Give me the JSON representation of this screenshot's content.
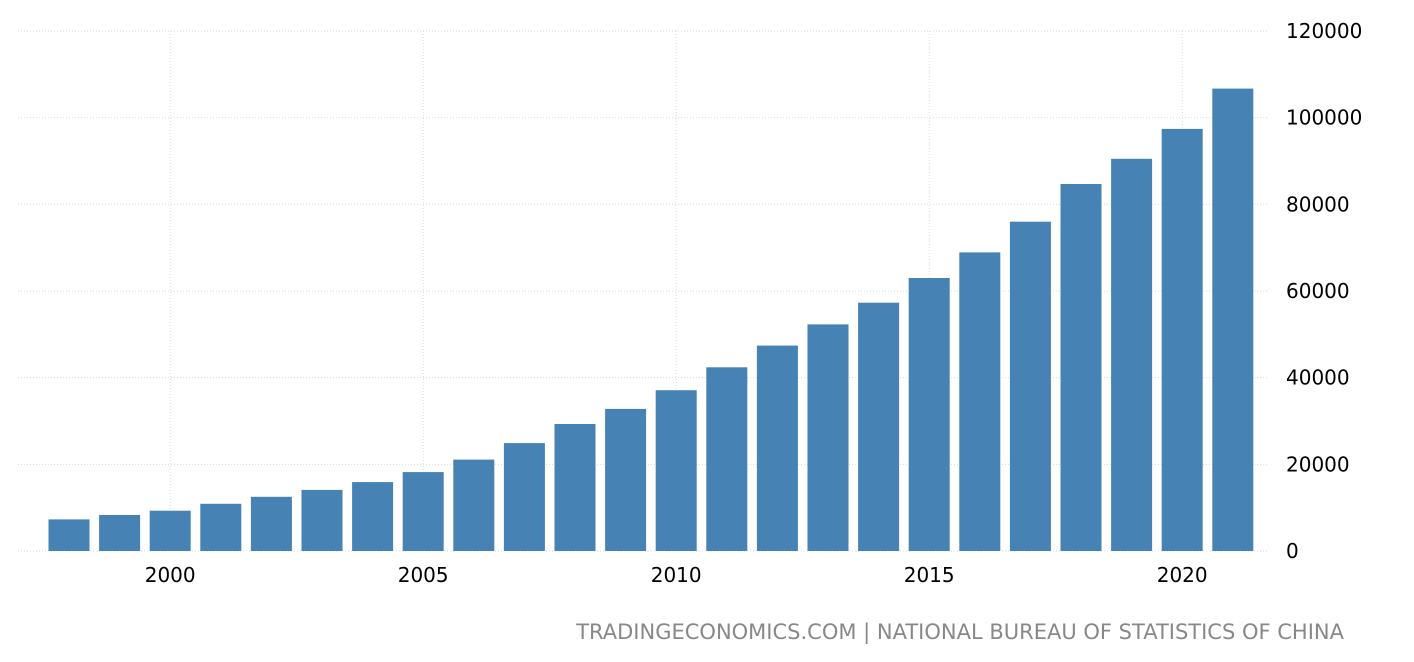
{
  "chart_data": {
    "type": "bar",
    "categories": [
      "1998",
      "1999",
      "2000",
      "2001",
      "2002",
      "2003",
      "2004",
      "2005",
      "2006",
      "2007",
      "2008",
      "2009",
      "2010",
      "2011",
      "2012",
      "2013",
      "2014",
      "2015",
      "2016",
      "2017",
      "2018",
      "2019",
      "2020",
      "2021"
    ],
    "values": [
      7300,
      8300,
      9300,
      10900,
      12500,
      14100,
      15900,
      18200,
      21100,
      24900,
      29300,
      32800,
      37100,
      42400,
      47400,
      52300,
      57300,
      63000,
      68900,
      76000,
      84700,
      90500,
      97400,
      106700
    ],
    "xtick_labels": [
      "2000",
      "2005",
      "2010",
      "2015",
      "2020"
    ],
    "yticks": [
      0,
      20000,
      40000,
      60000,
      80000,
      100000,
      120000
    ],
    "ylim": [
      0,
      120000
    ],
    "y_axis_side": "right",
    "grid": true,
    "bar_color": "#4682b4",
    "source": "TRADINGECONOMICS.COM | NATIONAL BUREAU OF STATISTICS OF CHINA"
  }
}
